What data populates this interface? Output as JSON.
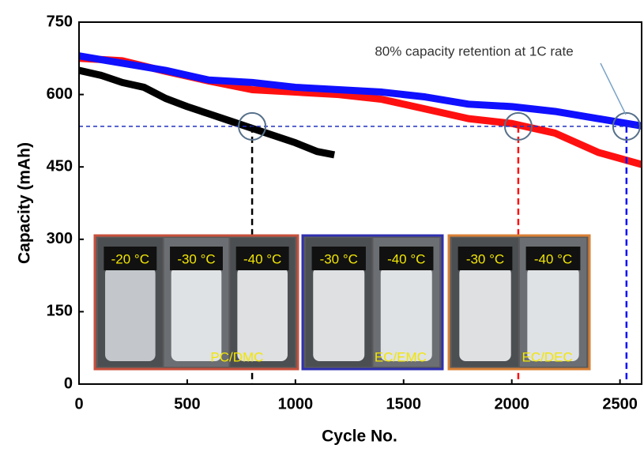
{
  "chart_data": {
    "type": "line",
    "x_label": "Cycle No.",
    "y_label": "Capacity (mAh)",
    "xlim": [
      0,
      2600
    ],
    "xticks": [
      0,
      500,
      1000,
      1500,
      2000,
      2500
    ],
    "ylim": [
      0,
      750
    ],
    "yticks": [
      0,
      150,
      300,
      450,
      600,
      750
    ],
    "series": [
      {
        "color": "#000000",
        "x": [
          0,
          100,
          200,
          300,
          400,
          500,
          600,
          700,
          800,
          900,
          1000,
          1100,
          1180
        ],
        "values": [
          650,
          640,
          625,
          615,
          592,
          575,
          560,
          545,
          530,
          515,
          500,
          482,
          475
        ]
      },
      {
        "color": "#ff1010",
        "x": [
          0,
          200,
          400,
          600,
          800,
          1000,
          1200,
          1400,
          1600,
          1800,
          2000,
          2200,
          2400,
          2600
        ],
        "values": [
          675,
          670,
          648,
          628,
          610,
          605,
          600,
          590,
          570,
          550,
          540,
          520,
          480,
          455
        ]
      },
      {
        "color": "#1010ff",
        "x": [
          0,
          200,
          400,
          600,
          800,
          1000,
          1200,
          1400,
          1600,
          1800,
          2000,
          2200,
          2400,
          2600
        ],
        "values": [
          680,
          665,
          650,
          630,
          625,
          615,
          610,
          605,
          595,
          580,
          575,
          565,
          550,
          535
        ]
      }
    ],
    "annotation": "80% capacity retention at 1C rate",
    "retention_level": 534,
    "markers": [
      {
        "x": 800,
        "color": "#000000"
      },
      {
        "x": 2030,
        "color": "#ff1010"
      },
      {
        "x": 2530,
        "color": "#1010ff"
      }
    ],
    "insets": [
      {
        "border": "#c8503c",
        "temps": [
          "-20 °C",
          "-30 °C",
          "-40 °C"
        ],
        "solvent": "PC/DMC"
      },
      {
        "border": "#3030b0",
        "temps": [
          "-30 °C",
          "-40 °C"
        ],
        "solvent": "EC/EMC"
      },
      {
        "border": "#d98036",
        "temps": [
          "-30 °C",
          "-40 °C"
        ],
        "solvent": "EC/DEC"
      }
    ]
  }
}
